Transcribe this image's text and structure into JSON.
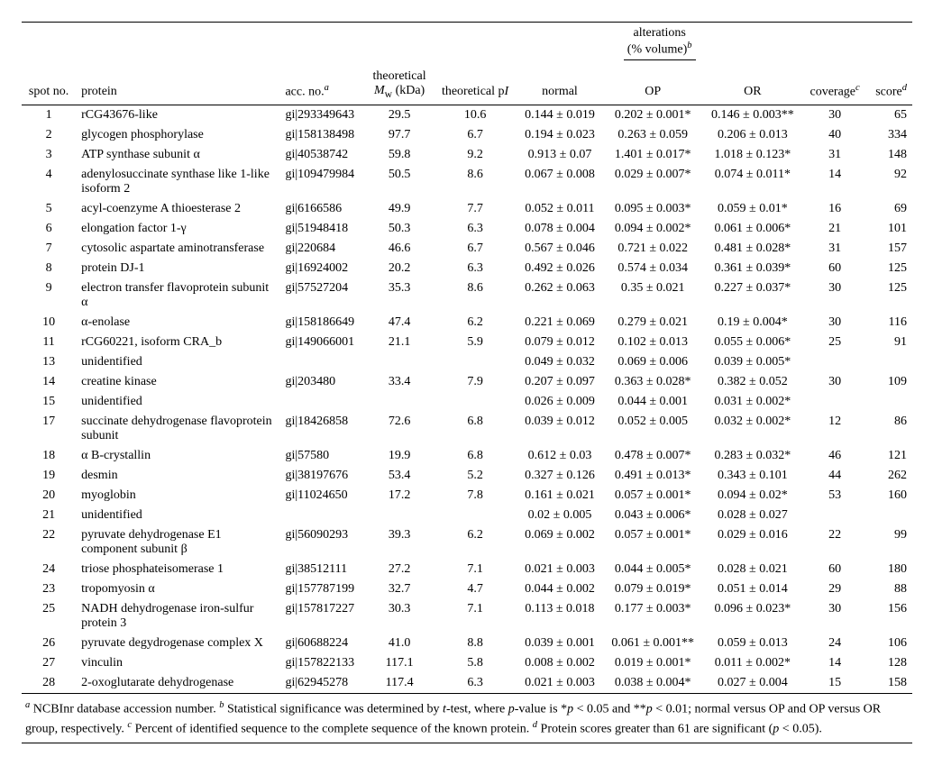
{
  "type": "table",
  "colors": {
    "background": "#ffffff",
    "text": "#000000",
    "rule": "#000000"
  },
  "typography": {
    "family": "Times New Roman",
    "body_fontsize_pt": 11,
    "footnote_fontsize_pt": 11
  },
  "headers": {
    "group_alterations_html": "alterations<br>(% volume)<sup><i>b</i></sup>",
    "spot_no": "spot no.",
    "protein": "protein",
    "acc_no_html": "acc. no.<sup><i>a</i></sup>",
    "mw_html": "theoretical<br><i>M</i><sub>w</sub> (kDa)",
    "pi_html": "theoretical p<i>I</i>",
    "normal": "normal",
    "op": "OP",
    "or": "OR",
    "coverage_html": "coverage<sup><i>c</i></sup>",
    "score_html": "score<sup><i>d</i></sup>"
  },
  "column_align": {
    "spot_no": "c",
    "protein": "l",
    "acc_no": "l",
    "mw": "c",
    "pi": "c",
    "normal": "c",
    "op": "c",
    "or": "c",
    "coverage": "c",
    "score": "r"
  },
  "rows": [
    {
      "spot_no": "1",
      "protein": "rCG43676-like",
      "acc_no": "gi|293349643",
      "mw": "29.5",
      "pi": "10.6",
      "normal": "0.144 ± 0.019",
      "op": "0.202 ± 0.001*",
      "or": "0.146 ± 0.003**",
      "coverage": "30",
      "score": "65"
    },
    {
      "spot_no": "2",
      "protein": "glycogen phosphorylase",
      "acc_no": "gi|158138498",
      "mw": "97.7",
      "pi": "6.7",
      "normal": "0.194 ± 0.023",
      "op": "0.263 ± 0.059",
      "or": "0.206 ± 0.013",
      "coverage": "40",
      "score": "334"
    },
    {
      "spot_no": "3",
      "protein": "ATP synthase subunit α",
      "acc_no": "gi|40538742",
      "mw": "59.8",
      "pi": "9.2",
      "normal": "0.913 ± 0.07",
      "op": "1.401 ± 0.017*",
      "or": "1.018 ± 0.123*",
      "coverage": "31",
      "score": "148"
    },
    {
      "spot_no": "4",
      "protein": "adenylosuccinate synthase like 1-like isoform 2",
      "acc_no": "gi|109479984",
      "mw": "50.5",
      "pi": "8.6",
      "normal": "0.067 ± 0.008",
      "op": "0.029 ± 0.007*",
      "or": "0.074 ± 0.011*",
      "coverage": "14",
      "score": "92"
    },
    {
      "spot_no": "5",
      "protein": "acyl-coenzyme A thioesterase 2",
      "acc_no": "gi|6166586",
      "mw": "49.9",
      "pi": "7.7",
      "normal": "0.052 ± 0.011",
      "op": "0.095 ± 0.003*",
      "or": "0.059 ± 0.01*",
      "coverage": "16",
      "score": "69"
    },
    {
      "spot_no": "6",
      "protein": "elongation factor 1-γ",
      "acc_no": "gi|51948418",
      "mw": "50.3",
      "pi": "6.3",
      "normal": "0.078 ± 0.004",
      "op": "0.094 ± 0.002*",
      "or": "0.061 ± 0.006*",
      "coverage": "21",
      "score": "101"
    },
    {
      "spot_no": "7",
      "protein": "cytosolic aspartate aminotransferase",
      "acc_no": "gi|220684",
      "mw": "46.6",
      "pi": "6.7",
      "normal": "0.567 ± 0.046",
      "op": "0.721 ± 0.022",
      "or": "0.481 ± 0.028*",
      "coverage": "31",
      "score": "157"
    },
    {
      "spot_no": "8",
      "protein": "protein DJ-1",
      "acc_no": "gi|16924002",
      "mw": "20.2",
      "pi": "6.3",
      "normal": "0.492 ± 0.026",
      "op": "0.574 ± 0.034",
      "or": "0.361 ± 0.039*",
      "coverage": "60",
      "score": "125"
    },
    {
      "spot_no": "9",
      "protein": "electron transfer flavoprotein subunit α",
      "acc_no": "gi|57527204",
      "mw": "35.3",
      "pi": "8.6",
      "normal": "0.262 ± 0.063",
      "op": "0.35 ± 0.021",
      "or": "0.227 ± 0.037*",
      "coverage": "30",
      "score": "125"
    },
    {
      "spot_no": "10",
      "protein": "α-enolase",
      "acc_no": "gi|158186649",
      "mw": "47.4",
      "pi": "6.2",
      "normal": "0.221 ± 0.069",
      "op": "0.279 ± 0.021",
      "or": "0.19 ± 0.004*",
      "coverage": "30",
      "score": "116"
    },
    {
      "spot_no": "11",
      "protein": "rCG60221, isoform CRA_b",
      "acc_no": "gi|149066001",
      "mw": "21.1",
      "pi": "5.9",
      "normal": "0.079 ± 0.012",
      "op": "0.102 ± 0.013",
      "or": "0.055 ± 0.006*",
      "coverage": "25",
      "score": "91"
    },
    {
      "spot_no": "13",
      "protein": "unidentified",
      "acc_no": "",
      "mw": "",
      "pi": "",
      "normal": "0.049 ± 0.032",
      "op": "0.069 ± 0.006",
      "or": "0.039 ± 0.005*",
      "coverage": "",
      "score": ""
    },
    {
      "spot_no": "14",
      "protein": "creatine kinase",
      "acc_no": "gi|203480",
      "mw": "33.4",
      "pi": "7.9",
      "normal": "0.207 ± 0.097",
      "op": "0.363 ± 0.028*",
      "or": "0.382 ± 0.052",
      "coverage": "30",
      "score": "109"
    },
    {
      "spot_no": "15",
      "protein": "unidentified",
      "acc_no": "",
      "mw": "",
      "pi": "",
      "normal": "0.026 ± 0.009",
      "op": "0.044 ± 0.001",
      "or": "0.031 ± 0.002*",
      "coverage": "",
      "score": ""
    },
    {
      "spot_no": "17",
      "protein": "succinate dehydrogenase flavoprotein subunit",
      "acc_no": "gi|18426858",
      "mw": "72.6",
      "pi": "6.8",
      "normal": "0.039 ± 0.012",
      "op": "0.052 ± 0.005",
      "or": "0.032 ± 0.002*",
      "coverage": "12",
      "score": "86"
    },
    {
      "spot_no": "18",
      "protein": "α B-crystallin",
      "acc_no": "gi|57580",
      "mw": "19.9",
      "pi": "6.8",
      "normal": "0.612 ± 0.03",
      "op": "0.478 ± 0.007*",
      "or": "0.283 ± 0.032*",
      "coverage": "46",
      "score": "121"
    },
    {
      "spot_no": "19",
      "protein": "desmin",
      "acc_no": "gi|38197676",
      "mw": "53.4",
      "pi": "5.2",
      "normal": "0.327 ± 0.126",
      "op": "0.491 ± 0.013*",
      "or": "0.343 ± 0.101",
      "coverage": "44",
      "score": "262"
    },
    {
      "spot_no": "20",
      "protein": "myoglobin",
      "acc_no": "gi|11024650",
      "mw": "17.2",
      "pi": "7.8",
      "normal": "0.161 ± 0.021",
      "op": "0.057 ± 0.001*",
      "or": "0.094 ± 0.02*",
      "coverage": "53",
      "score": "160"
    },
    {
      "spot_no": "21",
      "protein": "unidentified",
      "acc_no": "",
      "mw": "",
      "pi": "",
      "normal": "0.02 ± 0.005",
      "op": "0.043 ± 0.006*",
      "or": "0.028 ± 0.027",
      "coverage": "",
      "score": ""
    },
    {
      "spot_no": "22",
      "protein": "pyruvate dehydrogenase E1 component subunit β",
      "acc_no": "gi|56090293",
      "mw": "39.3",
      "pi": "6.2",
      "normal": "0.069 ± 0.002",
      "op": "0.057 ± 0.001*",
      "or": "0.029 ± 0.016",
      "coverage": "22",
      "score": "99"
    },
    {
      "spot_no": "24",
      "protein": "triose phosphateisomerase 1",
      "acc_no": "gi|38512111",
      "mw": "27.2",
      "pi": "7.1",
      "normal": "0.021 ± 0.003",
      "op": "0.044 ± 0.005*",
      "or": "0.028 ± 0.021",
      "coverage": "60",
      "score": "180"
    },
    {
      "spot_no": "23",
      "protein": "tropomyosin α",
      "acc_no": "gi|157787199",
      "mw": "32.7",
      "pi": "4.7",
      "normal": "0.044 ± 0.002",
      "op": "0.079 ± 0.019*",
      "or": "0.051 ± 0.014",
      "coverage": "29",
      "score": "88"
    },
    {
      "spot_no": "25",
      "protein": "NADH dehydrogenase iron-sulfur protein 3",
      "acc_no": "gi|157817227",
      "mw": "30.3",
      "pi": "7.1",
      "normal": "0.113 ± 0.018",
      "op": "0.177 ± 0.003*",
      "or": "0.096 ± 0.023*",
      "coverage": "30",
      "score": "156"
    },
    {
      "spot_no": "26",
      "protein": "pyruvate degydrogenase complex X",
      "acc_no": "gi|60688224",
      "mw": "41.0",
      "pi": "8.8",
      "normal": "0.039 ± 0.001",
      "op": "0.061 ± 0.001**",
      "or": "0.059 ± 0.013",
      "coverage": "24",
      "score": "106"
    },
    {
      "spot_no": "27",
      "protein": "vinculin",
      "acc_no": "gi|157822133",
      "mw": "117.1",
      "pi": "5.8",
      "normal": "0.008 ± 0.002",
      "op": "0.019 ± 0.001*",
      "or": "0.011 ± 0.002*",
      "coverage": "14",
      "score": "128"
    },
    {
      "spot_no": "28",
      "protein": "2-oxoglutarate dehydrogenase",
      "acc_no": "gi|62945278",
      "mw": "117.4",
      "pi": "6.3",
      "normal": "0.021 ± 0.003",
      "op": "0.038 ± 0.004*",
      "or": "0.027 ± 0.004",
      "coverage": "15",
      "score": "158"
    }
  ],
  "footnotes_html": "<sup><i>a</i></sup> NCBInr database accession number. <sup><i>b</i></sup> Statistical significance was determined by <i>t</i>-test, where <i>p</i>-value is *<i>p</i> &lt; 0.05 and **<i>p</i> &lt; 0.01; normal versus OP and OP versus OR group, respectively. <sup><i>c</i></sup> Percent of identified sequence to the complete sequence of the known protein. <sup><i>d</i></sup> Protein scores greater than 61 are significant (<i>p</i> &lt; 0.05)."
}
